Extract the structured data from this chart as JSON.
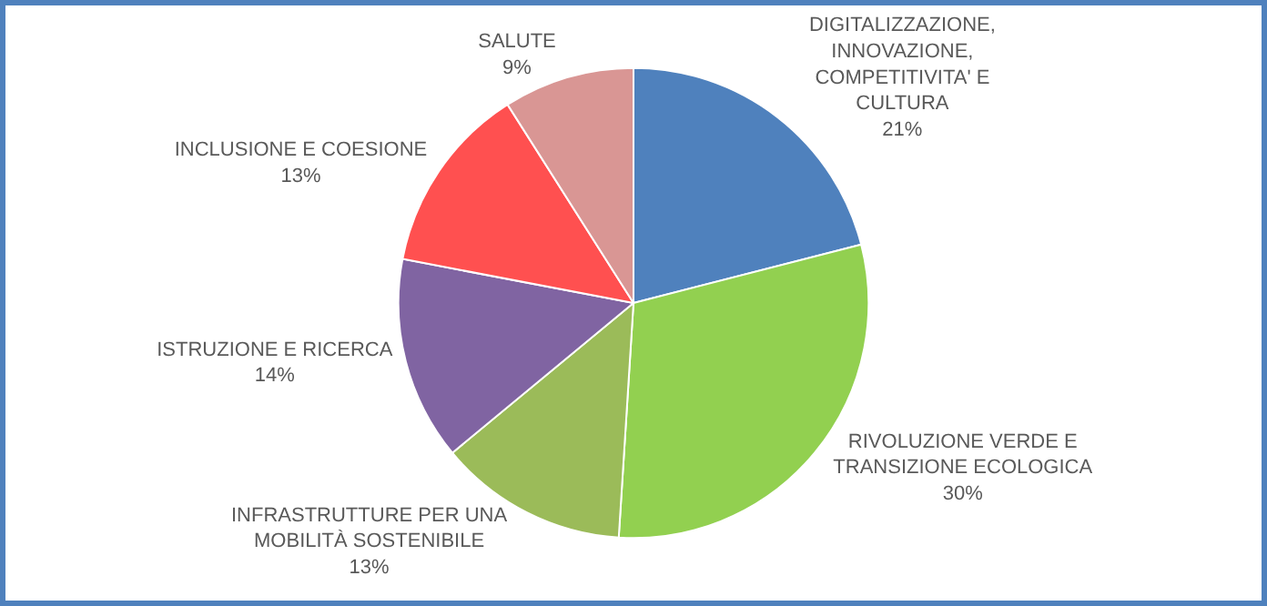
{
  "chart_data": {
    "type": "pie",
    "categories": [
      "DIGITALIZZAZIONE, INNOVAZIONE, COMPETITIVITA' E CULTURA",
      "RIVOLUZIONE VERDE E TRANSIZIONE ECOLOGICA",
      "INFRASTRUTTURE PER UNA MOBILITÀ SOSTENIBILE",
      "ISTRUZIONE E RICERCA",
      "INCLUSIONE E COESIONE",
      "SALUTE"
    ],
    "values": [
      21,
      30,
      13,
      14,
      13,
      9
    ],
    "value_labels": [
      "21%",
      "30%",
      "13%",
      "14%",
      "13%",
      "9%"
    ],
    "colors": [
      "#4f81bd",
      "#92d050",
      "#9bbb59",
      "#8064a2",
      "#ff5050",
      "#d99694"
    ],
    "legend": false
  }
}
